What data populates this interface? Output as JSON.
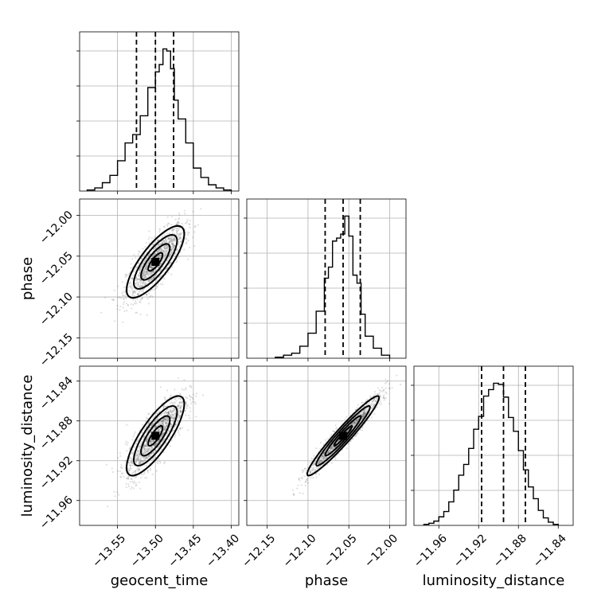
{
  "chart_data": {
    "type": "corner",
    "parameters": [
      "geocent_time",
      "phase",
      "luminosity_distance"
    ],
    "axes": {
      "geocent_time": {
        "range": [
          -13.6,
          -13.39
        ],
        "ticks": [
          -13.55,
          -13.5,
          -13.45,
          -13.4
        ],
        "tick_labels": [
          "−13.55",
          "−13.50",
          "−13.45",
          "−13.40"
        ]
      },
      "phase": {
        "range": [
          -12.175,
          -11.98
        ],
        "ticks": [
          -12.15,
          -12.1,
          -12.05,
          -12.0
        ],
        "tick_labels": [
          "−12.15",
          "−12.10",
          "−12.05",
          "−12.00"
        ]
      },
      "luminosity_distance": {
        "range": [
          -11.985,
          -11.825
        ],
        "ticks": [
          -11.96,
          -11.92,
          -11.88,
          -11.84
        ],
        "tick_labels": [
          "−11.96",
          "−11.92",
          "−11.88",
          "−11.84"
        ]
      }
    },
    "histograms": [
      {
        "param": "geocent_time",
        "bin_edges": [
          -13.59,
          -13.58,
          -13.57,
          -13.56,
          -13.55,
          -13.54,
          -13.53,
          -13.52,
          -13.51,
          -13.5,
          -13.495,
          -13.49,
          -13.485,
          -13.48,
          -13.475,
          -13.47,
          -13.46,
          -13.45,
          -13.44,
          -13.43,
          -13.42,
          -13.41,
          -13.4
        ],
        "counts": [
          1,
          3,
          8,
          15,
          29,
          46,
          54,
          72,
          99,
          114,
          121,
          136,
          134,
          117,
          87,
          69,
          46,
          22,
          13,
          6,
          3,
          1
        ],
        "quantiles": [
          -13.525,
          -13.5,
          -13.476
        ]
      },
      {
        "param": "phase",
        "bin_edges": [
          -12.14,
          -12.13,
          -12.12,
          -12.11,
          -12.1,
          -12.09,
          -12.08,
          -12.075,
          -12.07,
          -12.065,
          -12.06,
          -12.055,
          -12.05,
          -12.045,
          -12.04,
          -12.035,
          -12.03,
          -12.02,
          -12.01,
          -12.0
        ],
        "counts": [
          1,
          3,
          5,
          12,
          25,
          47,
          80,
          91,
          117,
          120,
          124,
          142,
          122,
          83,
          75,
          44,
          22,
          10,
          3
        ],
        "quantiles": [
          -12.079,
          -12.057,
          -12.036
        ]
      },
      {
        "param": "luminosity_distance",
        "bin_edges": [
          -11.975,
          -11.97,
          -11.965,
          -11.96,
          -11.955,
          -11.95,
          -11.945,
          -11.94,
          -11.935,
          -11.93,
          -11.925,
          -11.92,
          -11.915,
          -11.91,
          -11.905,
          -11.9,
          -11.895,
          -11.89,
          -11.885,
          -11.88,
          -11.875,
          -11.87,
          -11.865,
          -11.86,
          -11.855,
          -11.85,
          -11.845,
          -11.84
        ],
        "counts": [
          1,
          2,
          4,
          8,
          13,
          22,
          33,
          47,
          57,
          72,
          90,
          102,
          121,
          127,
          133,
          132,
          120,
          101,
          88,
          70,
          52,
          36,
          25,
          14,
          7,
          3,
          1
        ],
        "quantiles": [
          -11.917,
          -11.895,
          -11.873
        ]
      }
    ],
    "density_plots": [
      {
        "x": "geocent_time",
        "y": "phase",
        "center": [
          -13.5,
          -12.057
        ],
        "sd": [
          0.019,
          0.022
        ],
        "corr": 0.78,
        "contour_levels": [
          "0.5σ",
          "1σ",
          "1.5σ",
          "2σ"
        ]
      },
      {
        "x": "geocent_time",
        "y": "luminosity_distance",
        "center": [
          -13.5,
          -11.895
        ],
        "sd": [
          0.019,
          0.02
        ],
        "corr": 0.8,
        "contour_levels": [
          "0.5σ",
          "1σ",
          "1.5σ",
          "2σ"
        ]
      },
      {
        "x": "phase",
        "y": "luminosity_distance",
        "center": [
          -12.057,
          -11.895
        ],
        "sd": [
          0.022,
          0.02
        ],
        "corr": 0.96,
        "contour_levels": [
          "0.5σ",
          "1σ",
          "1.5σ",
          "2σ"
        ]
      }
    ],
    "title": "",
    "grid": true
  }
}
